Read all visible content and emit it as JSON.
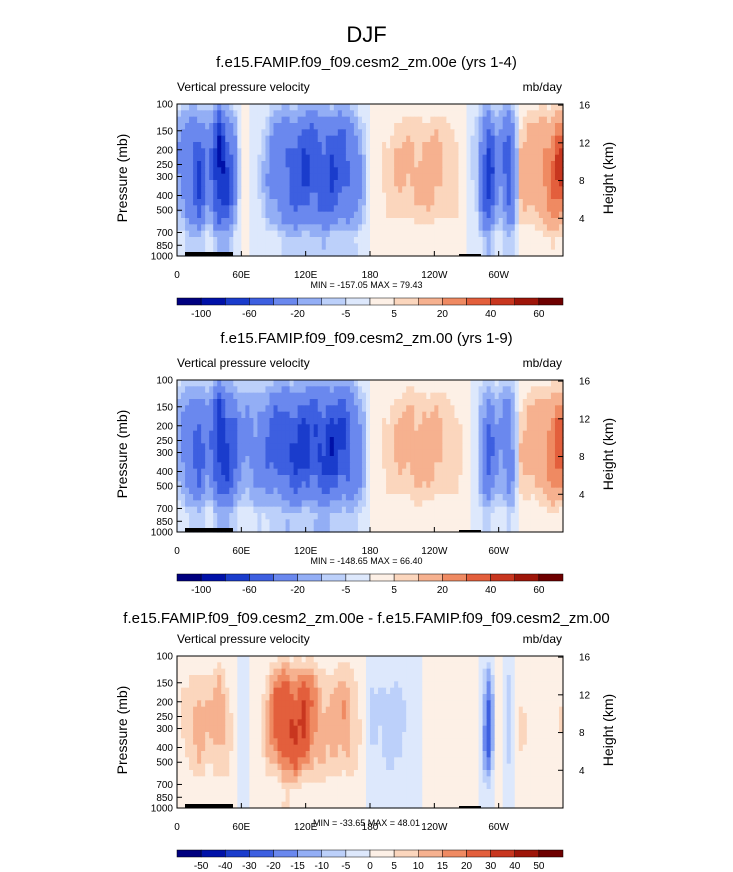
{
  "figure_title": "DJF",
  "colors": {
    "pressure_velocity_scale": [
      "#00007f",
      "#0011a8",
      "#1a3ccc",
      "#3d5fe0",
      "#6a88ee",
      "#93aef5",
      "#bcd0fa",
      "#dde8fc",
      "#fdf0e6",
      "#fbd6bd",
      "#f6b18f",
      "#ef8a62",
      "#e35f3c",
      "#c8361f",
      "#9e1509",
      "#6e0000"
    ]
  },
  "panels": [
    {
      "title": "f.e15.FAMIP.f09_f09.cesm2_zm.00e (yrs 1-4)",
      "left_label": "Vertical pressure velocity",
      "right_label": "mb/day",
      "minmax": "MIN = -157.05  MAX =  79.43",
      "colorbar_labels": [
        "-100",
        "-60",
        "-20",
        "-5",
        "5",
        "20",
        "40",
        "60"
      ]
    },
    {
      "title": "f.e15.FAMIP.f09_f09.cesm2_zm.00 (yrs 1-9)",
      "left_label": "Vertical pressure velocity",
      "right_label": "mb/day",
      "minmax": "MIN = -148.65  MAX =  66.40",
      "colorbar_labels": [
        "-100",
        "-60",
        "-20",
        "-5",
        "5",
        "20",
        "40",
        "60"
      ]
    },
    {
      "title": "f.e15.FAMIP.f09_f09.cesm2_zm.00e - f.e15.FAMIP.f09_f09.cesm2_zm.00",
      "left_label": "Vertical pressure velocity",
      "right_label": "mb/day",
      "minmax": "MIN = -33.65  MAX =  48.01",
      "colorbar_labels": [
        "-50",
        "-40",
        "-30",
        "-20",
        "-15",
        "-10",
        "-5",
        "0",
        "5",
        "10",
        "15",
        "20",
        "30",
        "40",
        "50"
      ]
    }
  ],
  "chart_data": [
    {
      "type": "heatmap",
      "title": "f.e15.FAMIP.f09_f09.cesm2_zm.00e (yrs 1-4)",
      "ylabel": "Pressure (mb)",
      "y2label": "Height (km)",
      "xticks": [
        "0",
        "60E",
        "120E",
        "180",
        "120W",
        "60W"
      ],
      "yticks": [
        "100",
        "150",
        "200",
        "250",
        "300",
        "400",
        "500",
        "700",
        "850",
        "1000"
      ],
      "y2ticks": [
        "4",
        "8",
        "12",
        "16"
      ],
      "ylim": [
        1000,
        100
      ],
      "min": -157.05,
      "max": 79.43,
      "levels": [
        -120,
        -100,
        -80,
        -60,
        -40,
        -20,
        -10,
        -5,
        0,
        5,
        10,
        20,
        30,
        40,
        50,
        60,
        70
      ],
      "approx_profile": {
        "longitude": [
          0,
          20,
          30,
          40,
          60,
          80,
          100,
          120,
          140,
          160,
          180,
          200,
          220,
          240,
          260,
          280,
          290,
          300,
          310,
          320,
          340,
          355
        ],
        "value": [
          -15,
          -60,
          -20,
          -100,
          5,
          -8,
          -45,
          -55,
          -55,
          -45,
          3,
          8,
          12,
          12,
          8,
          -10,
          -70,
          -15,
          -60,
          10,
          20,
          35
        ]
      }
    },
    {
      "type": "heatmap",
      "title": "f.e15.FAMIP.f09_f09.cesm2_zm.00 (yrs 1-9)",
      "ylabel": "Pressure (mb)",
      "y2label": "Height (km)",
      "xticks": [
        "0",
        "60E",
        "120E",
        "180",
        "120W",
        "60W"
      ],
      "yticks": [
        "100",
        "150",
        "200",
        "250",
        "300",
        "400",
        "500",
        "700",
        "850",
        "1000"
      ],
      "y2ticks": [
        "4",
        "8",
        "12",
        "16"
      ],
      "ylim": [
        1000,
        100
      ],
      "min": -148.65,
      "max": 66.4,
      "levels": [
        -120,
        -100,
        -80,
        -60,
        -40,
        -20,
        -10,
        -5,
        0,
        5,
        10,
        20,
        30,
        40,
        50,
        60,
        70
      ],
      "approx_profile": {
        "longitude": [
          0,
          20,
          30,
          40,
          60,
          80,
          100,
          120,
          140,
          160,
          180,
          200,
          220,
          240,
          260,
          280,
          290,
          300,
          310,
          320,
          340,
          355
        ],
        "value": [
          -12,
          -50,
          -20,
          -90,
          -20,
          -30,
          -55,
          -60,
          -65,
          -55,
          3,
          8,
          14,
          12,
          8,
          -5,
          -45,
          -15,
          -40,
          8,
          18,
          30
        ]
      }
    },
    {
      "type": "heatmap",
      "title": "f.e15.FAMIP.f09_f09.cesm2_zm.00e - f.e15.FAMIP.f09_f09.cesm2_zm.00",
      "ylabel": "Pressure (mb)",
      "y2label": "Height (km)",
      "xticks": [
        "0",
        "60E",
        "120E",
        "180",
        "120W",
        "60W"
      ],
      "yticks": [
        "100",
        "150",
        "200",
        "250",
        "300",
        "400",
        "500",
        "700",
        "850",
        "1000"
      ],
      "y2ticks": [
        "4",
        "8",
        "12",
        "16"
      ],
      "ylim": [
        1000,
        100
      ],
      "min": -33.65,
      "max": 48.01,
      "levels": [
        -60,
        -50,
        -40,
        -30,
        -20,
        -15,
        -10,
        -5,
        0,
        5,
        10,
        15,
        20,
        30,
        40,
        50,
        60
      ],
      "approx_profile": {
        "longitude": [
          0,
          20,
          30,
          40,
          60,
          80,
          100,
          120,
          140,
          160,
          180,
          200,
          220,
          240,
          260,
          280,
          290,
          300,
          310,
          320,
          340,
          355
        ],
        "value": [
          3,
          12,
          8,
          15,
          -3,
          5,
          30,
          25,
          10,
          15,
          -5,
          -8,
          -3,
          3,
          2,
          5,
          -25,
          8,
          -10,
          5,
          3,
          4
        ]
      }
    }
  ]
}
